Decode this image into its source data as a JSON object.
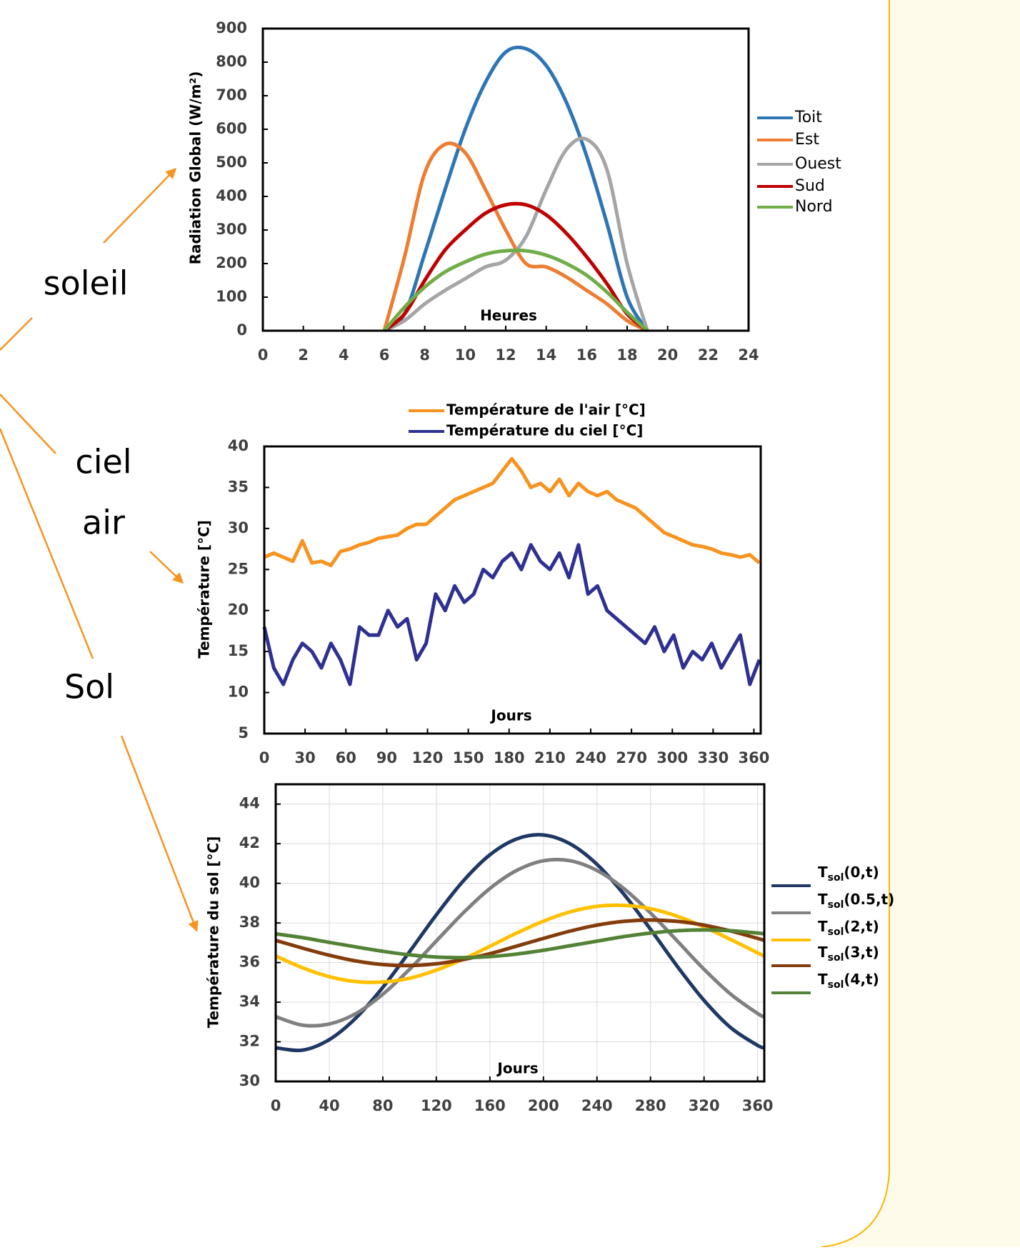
{
  "side_labels": [
    "soleil",
    "ciel",
    "air",
    "Sol"
  ],
  "chart_data": [
    {
      "type": "line",
      "x_label": "Heures",
      "y_label": "Radiation Global (W/m²)",
      "x": [
        6,
        7,
        8,
        9,
        10,
        11,
        12,
        13,
        14,
        15,
        16,
        17,
        18,
        19
      ],
      "xlim": [
        0,
        24
      ],
      "xticks": [
        0,
        2,
        4,
        6,
        8,
        10,
        12,
        14,
        16,
        18,
        20,
        22,
        24
      ],
      "ylim": [
        0,
        900
      ],
      "yticks": [
        0,
        100,
        200,
        300,
        400,
        500,
        600,
        700,
        800,
        900
      ],
      "grid": false,
      "series": [
        {
          "name": "Toit",
          "color": "#2e75b6",
          "values": [
            0,
            50,
            230,
            420,
            600,
            740,
            830,
            840,
            790,
            680,
            520,
            320,
            100,
            0
          ]
        },
        {
          "name": "Est",
          "color": "#ed7d31",
          "values": [
            0,
            220,
            470,
            555,
            530,
            420,
            300,
            200,
            190,
            160,
            120,
            80,
            30,
            0
          ]
        },
        {
          "name": "Ouest",
          "color": "#a5a5a5",
          "values": [
            0,
            30,
            80,
            120,
            155,
            190,
            210,
            280,
            420,
            540,
            570,
            480,
            200,
            0
          ]
        },
        {
          "name": "Sud",
          "color": "#c00000",
          "values": [
            0,
            50,
            150,
            240,
            300,
            350,
            375,
            375,
            345,
            290,
            220,
            140,
            50,
            0
          ]
        },
        {
          "name": "Nord",
          "color": "#70ad47",
          "values": [
            0,
            70,
            130,
            175,
            205,
            228,
            238,
            238,
            225,
            200,
            165,
            115,
            55,
            0
          ]
        }
      ]
    },
    {
      "type": "line",
      "x_label": "Jours",
      "y_label": "Température [°C]",
      "x": [
        0,
        7,
        14,
        21,
        28,
        35,
        42,
        49,
        56,
        63,
        70,
        77,
        84,
        91,
        98,
        105,
        112,
        119,
        126,
        133,
        140,
        147,
        154,
        161,
        168,
        175,
        182,
        189,
        196,
        203,
        210,
        217,
        224,
        231,
        238,
        245,
        252,
        259,
        266,
        273,
        280,
        287,
        294,
        301,
        308,
        315,
        322,
        329,
        336,
        343,
        350,
        357,
        364
      ],
      "xlim": [
        0,
        365
      ],
      "xticks": [
        0,
        30,
        60,
        90,
        120,
        150,
        180,
        210,
        240,
        270,
        300,
        330,
        360
      ],
      "ylim": [
        5,
        40
      ],
      "yticks": [
        5,
        10,
        15,
        20,
        25,
        30,
        35,
        40
      ],
      "grid": false,
      "series": [
        {
          "name": "Température de l'air [°C]",
          "color": "#f7931e",
          "values": [
            26.5,
            27,
            26.5,
            26,
            28.5,
            25.8,
            26,
            25.5,
            27.2,
            27.5,
            28,
            28.3,
            28.8,
            29,
            29.2,
            30,
            30.5,
            30.5,
            31.5,
            32.5,
            33.5,
            34,
            34.5,
            35,
            35.5,
            37,
            38.5,
            37,
            35,
            35.5,
            34.5,
            36,
            34,
            35.5,
            34.5,
            34,
            34.5,
            33.5,
            33,
            32.5,
            31.5,
            30.5,
            29.5,
            29,
            28.5,
            28,
            27.8,
            27.5,
            27,
            26.8,
            26.5,
            26.8,
            25.8
          ]
        },
        {
          "name": "Température du ciel [°C]",
          "color": "#2e3192",
          "values": [
            18,
            13,
            11,
            14,
            16,
            15,
            13,
            16,
            14,
            11,
            18,
            17,
            17,
            20,
            18,
            19,
            14,
            16,
            22,
            20,
            23,
            21,
            22,
            25,
            24,
            26,
            27,
            25,
            28,
            26,
            25,
            27,
            24,
            28,
            22,
            23,
            20,
            19,
            18,
            17,
            16,
            18,
            15,
            17,
            13,
            15,
            14,
            16,
            13,
            15,
            17,
            11,
            14
          ]
        }
      ]
    },
    {
      "type": "line",
      "x_label": "Jours",
      "y_label": "Température du sol [°C]",
      "x": [
        0,
        20,
        40,
        60,
        80,
        100,
        120,
        140,
        160,
        180,
        200,
        220,
        240,
        260,
        280,
        300,
        320,
        340,
        360,
        365
      ],
      "xlim": [
        0,
        365
      ],
      "xticks": [
        0,
        40,
        80,
        120,
        160,
        200,
        240,
        280,
        320,
        360
      ],
      "ylim": [
        30,
        45
      ],
      "yticks": [
        30,
        32,
        34,
        36,
        38,
        40,
        42,
        44
      ],
      "grid": true,
      "series": [
        {
          "name": "Tsol(0,t)",
          "color": "#1f3864",
          "values": [
            31.7,
            31.58,
            32.11,
            33.21,
            34.75,
            36.55,
            38.41,
            40.11,
            41.44,
            42.24,
            42.44,
            41.99,
            40.96,
            39.46,
            37.68,
            35.81,
            34.09,
            32.71,
            31.82,
            31.7
          ]
        },
        {
          "name": "Tsol(0.5,t)",
          "color": "#808080",
          "values": [
            33.27,
            32.84,
            32.9,
            33.43,
            34.4,
            35.66,
            37.09,
            38.5,
            39.74,
            40.65,
            41.14,
            41.14,
            40.65,
            39.74,
            38.5,
            37.09,
            35.66,
            34.4,
            33.43,
            33.26
          ]
        },
        {
          "name": "Tsol(2,t)",
          "color": "#ffc000",
          "values": [
            36.33,
            35.74,
            35.29,
            35.04,
            35.02,
            35.21,
            35.62,
            36.17,
            36.82,
            37.49,
            38.09,
            38.56,
            38.84,
            38.89,
            38.72,
            38.34,
            37.8,
            37.16,
            36.49,
            36.33
          ]
        },
        {
          "name": "Tsol(3,t)",
          "color": "#843c0c",
          "values": [
            37.12,
            36.73,
            36.37,
            36.08,
            35.9,
            35.85,
            35.94,
            36.15,
            36.45,
            36.83,
            37.22,
            37.59,
            37.89,
            38.08,
            38.15,
            38.08,
            37.89,
            37.59,
            37.22,
            37.12
          ]
        },
        {
          "name": "Tsol(4,t)",
          "color": "#548235",
          "values": [
            37.45,
            37.26,
            37.02,
            36.79,
            36.57,
            36.39,
            36.28,
            36.25,
            36.3,
            36.43,
            36.62,
            36.85,
            37.08,
            37.31,
            37.49,
            37.61,
            37.65,
            37.61,
            37.49,
            37.45
          ]
        }
      ]
    }
  ]
}
